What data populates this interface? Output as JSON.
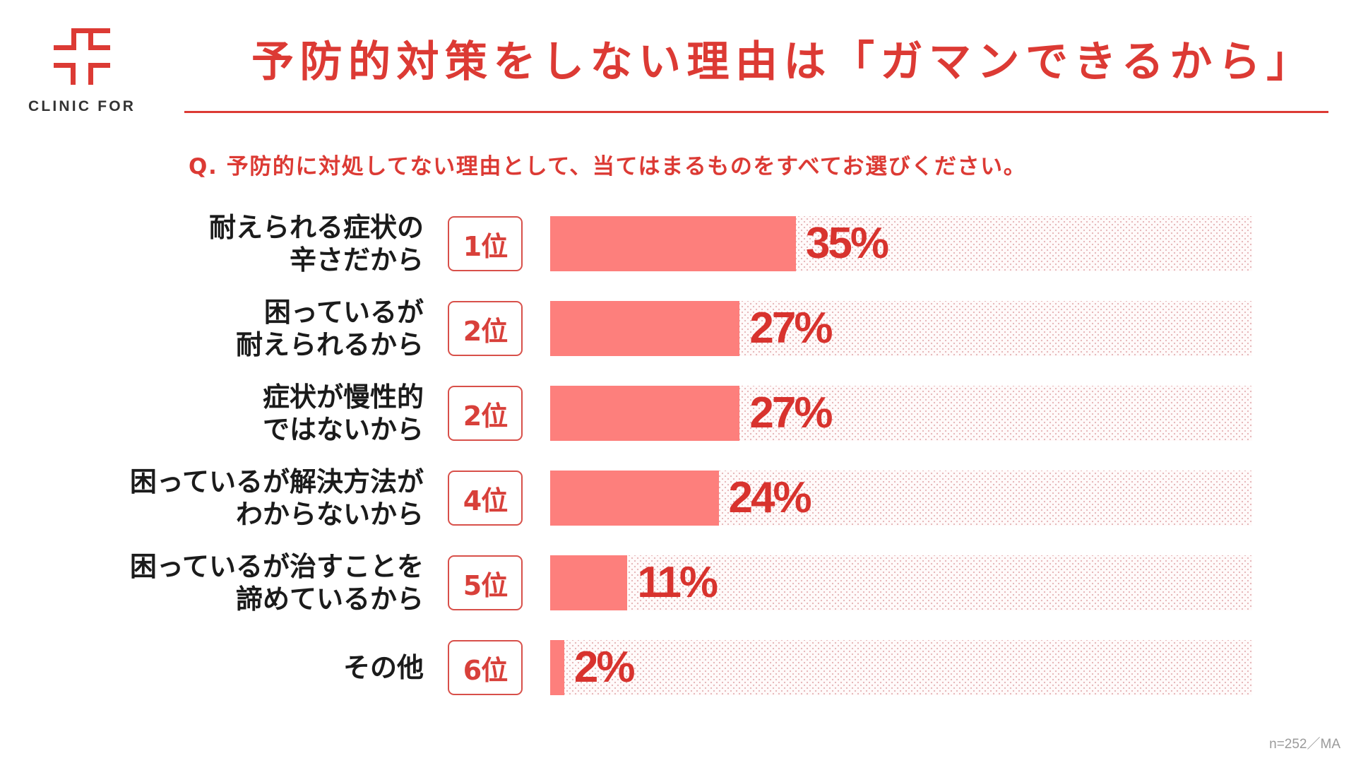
{
  "brand": {
    "logo_icon": "clinic-cross-icon",
    "name": "CLINIC FOR",
    "color": "#DC3A34"
  },
  "header": {
    "title": "予防的対策をしない理由は「ガマンできるから」"
  },
  "question": "Q. 予防的に対処してない理由として、当てはまるものをすべてお選びください。",
  "rows": [
    {
      "label_line1": "耐えられる症状の",
      "label_line2": "辛さだから",
      "rank": "1位",
      "value": 35,
      "value_label": "35%"
    },
    {
      "label_line1": "困っているが",
      "label_line2": "耐えられるから",
      "rank": "2位",
      "value": 27,
      "value_label": "27%"
    },
    {
      "label_line1": "症状が慢性的",
      "label_line2": "ではないから",
      "rank": "2位",
      "value": 27,
      "value_label": "27%"
    },
    {
      "label_line1": "困っているが解決方法が",
      "label_line2": "わからないから",
      "rank": "4位",
      "value": 24,
      "value_label": "24%"
    },
    {
      "label_line1": "困っているが治すことを",
      "label_line2": "諦めているから",
      "rank": "5位",
      "value": 11,
      "value_label": "11%"
    },
    {
      "label_line1": "その他",
      "label_line2": "",
      "rank": "6位",
      "value": 2,
      "value_label": "2%"
    }
  ],
  "footnote": "n=252／MA",
  "colors": {
    "accent": "#DC3A34",
    "bar_fill": "#FD7F7C",
    "rank_border": "#D8504A",
    "label_text": "#1B1B1B",
    "footnote_text": "#9A9A9A"
  },
  "chart_data": {
    "type": "bar",
    "orientation": "horizontal",
    "title": "予防的対策をしない理由は「ガマンできるから」",
    "subtitle": "Q. 予防的に対処してない理由として、当てはまるものをすべてお選びください。",
    "categories": [
      "耐えられる症状の辛さだから",
      "困っているが耐えられるから",
      "症状が慢性的ではないから",
      "困っているが解決方法がわからないから",
      "困っているが治すことを諦めているから",
      "その他"
    ],
    "ranks": [
      "1位",
      "2位",
      "2位",
      "4位",
      "5位",
      "6位"
    ],
    "values": [
      35,
      27,
      27,
      24,
      11,
      2
    ],
    "value_labels": [
      "35%",
      "27%",
      "27%",
      "24%",
      "11%",
      "2%"
    ],
    "xlabel": "",
    "ylabel": "",
    "xlim": [
      0,
      100
    ],
    "unit": "%",
    "grid": false,
    "legend": null,
    "note": "n=252／MA"
  }
}
